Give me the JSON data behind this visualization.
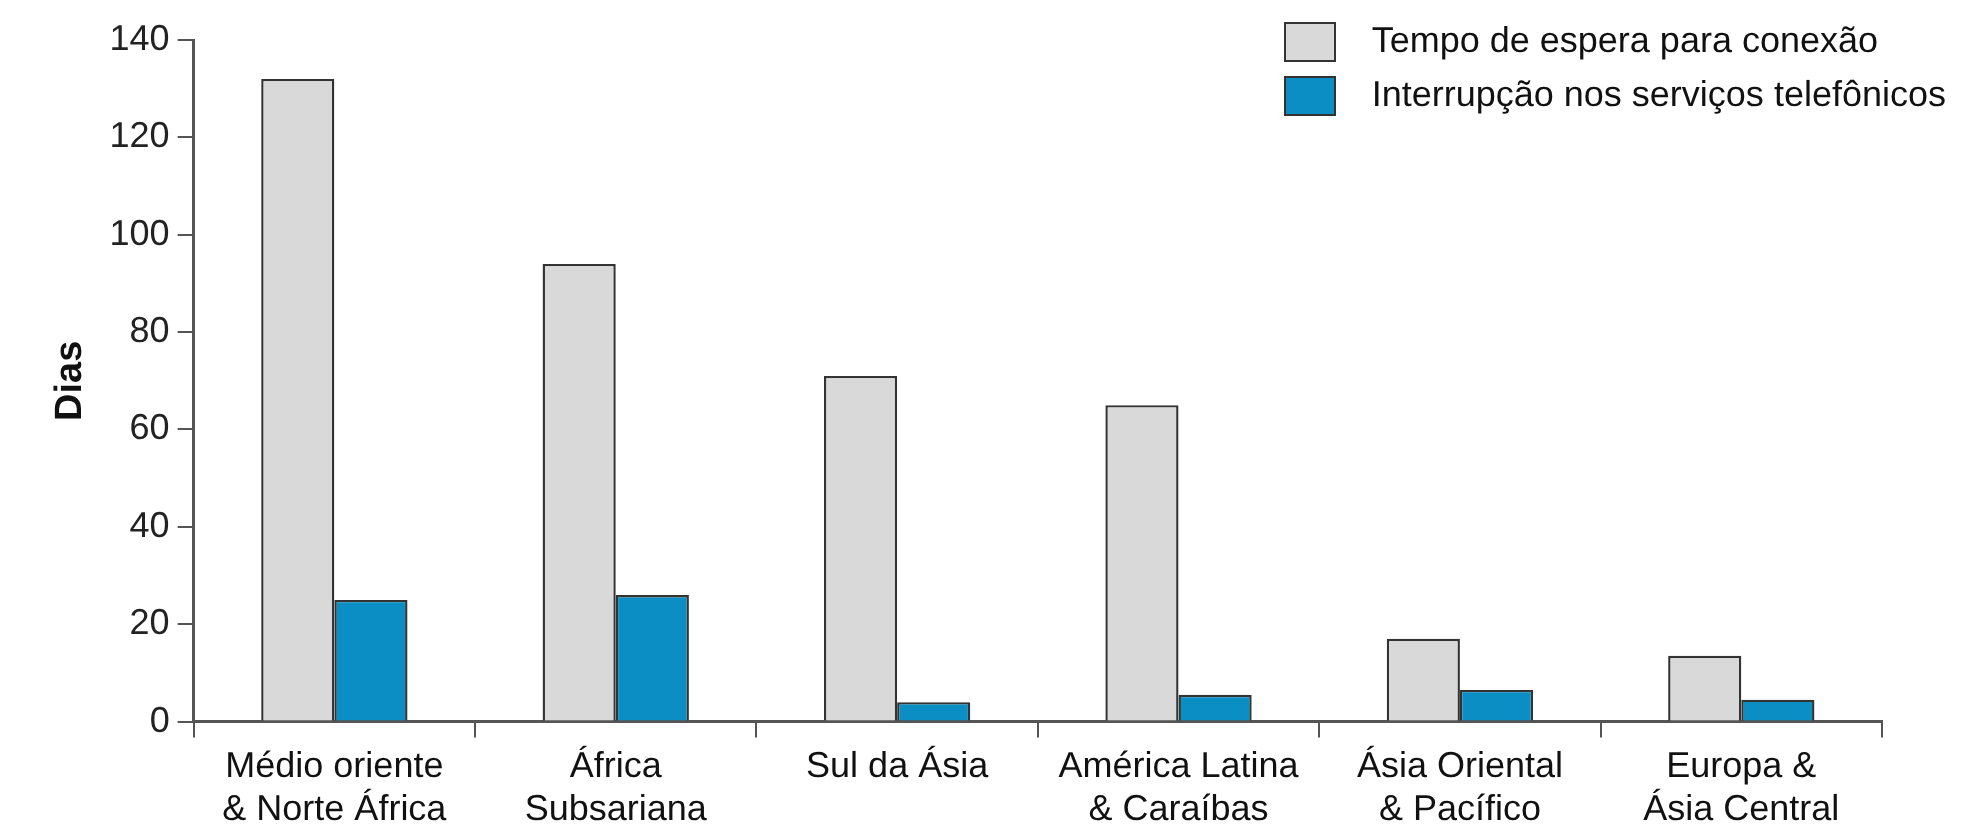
{
  "chart_data": {
    "type": "bar",
    "ylabel": "Dias",
    "categories": [
      "Médio oriente\n& Norte África",
      "África\nSubsariana",
      "Sul da Ásia",
      "América Latina\n& Caraíbas",
      "Ásia Oriental\n& Pacífico",
      "Europa &\nÁsia Central"
    ],
    "series": [
      {
        "name": "Tempo de espera para conexão",
        "color": "#d9d9d9",
        "values": [
          132,
          94,
          71,
          65,
          17,
          13.5
        ]
      },
      {
        "name": "Interrupção nos serviços telefônicos",
        "color": "#0a8ec4",
        "values": [
          25,
          26,
          4,
          5.5,
          6.5,
          4.5
        ]
      }
    ],
    "ylim": [
      0,
      140
    ],
    "yticks": [
      0,
      20,
      40,
      60,
      80,
      100,
      120,
      140
    ],
    "grid": false,
    "legend": "top right"
  }
}
